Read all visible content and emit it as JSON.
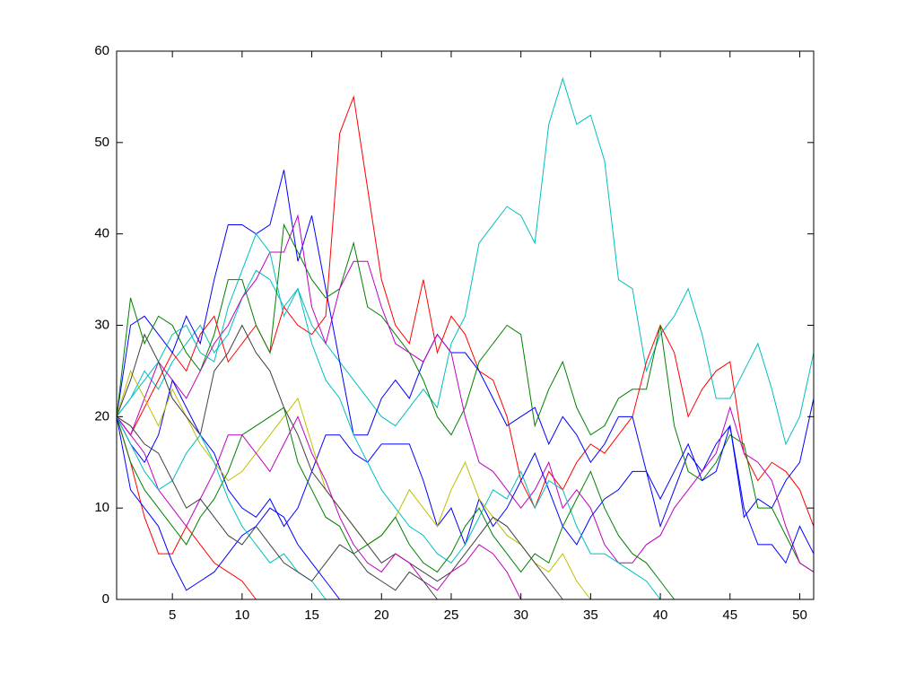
{
  "chart_data": {
    "type": "line",
    "x": [
      1,
      2,
      3,
      4,
      5,
      6,
      7,
      8,
      9,
      10,
      11,
      12,
      13,
      14,
      15,
      16,
      17,
      18,
      19,
      20,
      21,
      22,
      23,
      24,
      25,
      26,
      27,
      28,
      29,
      30,
      31,
      32,
      33,
      34,
      35,
      36,
      37,
      38,
      39,
      40,
      41,
      42,
      43,
      44,
      45,
      46,
      47,
      48,
      49,
      50,
      51
    ],
    "xlim": [
      1,
      51
    ],
    "xticks": [
      5,
      10,
      15,
      20,
      25,
      30,
      35,
      40,
      45,
      50
    ],
    "ylim": [
      0,
      60
    ],
    "yticks": [
      0,
      10,
      20,
      30,
      40,
      50,
      60
    ],
    "series": [
      {
        "color": "#00bfbf",
        "values": [
          20,
          22,
          25,
          23,
          26,
          28,
          30,
          27,
          29,
          33,
          36,
          35,
          32,
          34,
          30,
          28,
          26,
          24,
          22,
          20,
          19,
          21,
          23,
          21,
          28,
          31,
          39,
          41,
          43,
          42,
          39,
          52,
          57,
          52,
          53,
          48,
          35,
          34,
          25,
          29,
          31,
          34,
          29,
          22,
          22,
          25,
          28,
          23,
          17,
          20,
          27
        ]
      },
      {
        "color": "#ff0000",
        "values": [
          20,
          18,
          21,
          24,
          27,
          25,
          29,
          31,
          26,
          28,
          30,
          27,
          32,
          30,
          29,
          31,
          51,
          55,
          45,
          35,
          30,
          28,
          35,
          27,
          31,
          29,
          25,
          24,
          20,
          13,
          10,
          14,
          12,
          15,
          17,
          16,
          18,
          20,
          26,
          30,
          27,
          20,
          23,
          25,
          26,
          16,
          13,
          15,
          14,
          12,
          8
        ]
      },
      {
        "color": "#0000ff",
        "values": [
          20,
          30,
          31,
          29,
          27,
          31,
          28,
          35,
          41,
          41,
          40,
          41,
          47,
          37,
          42,
          34,
          26,
          18,
          18,
          22,
          24,
          22,
          26,
          29,
          27,
          27,
          25,
          22,
          19,
          20,
          21,
          17,
          20,
          18,
          15,
          17,
          20,
          20,
          14,
          8,
          12,
          16,
          14,
          17,
          19,
          9,
          11,
          10,
          13,
          15,
          22
        ]
      },
      {
        "color": "#008000",
        "values": [
          20,
          33,
          28,
          31,
          30,
          27,
          25,
          29,
          35,
          35,
          30,
          27,
          41,
          38,
          35,
          33,
          34,
          39,
          32,
          31,
          29,
          27,
          24,
          20,
          18,
          21,
          26,
          28,
          30,
          29,
          19,
          23,
          26,
          21,
          18,
          19,
          22,
          23,
          23,
          30,
          19,
          14,
          13,
          15,
          18,
          17,
          10,
          10,
          7,
          4,
          3
        ]
      },
      {
        "color": "#bf00bf",
        "values": [
          20,
          18,
          22,
          26,
          24,
          22,
          25,
          28,
          30,
          33,
          35,
          38,
          38,
          42,
          32,
          28,
          34,
          37,
          37,
          32,
          28,
          27,
          26,
          29,
          27,
          20,
          15,
          14,
          12,
          10,
          12,
          15,
          10,
          12,
          10,
          6,
          4,
          4,
          6,
          7,
          10,
          12,
          14,
          16,
          21,
          16,
          15,
          13,
          8,
          4,
          3
        ]
      },
      {
        "color": "#0000ff",
        "values": [
          20,
          17,
          15,
          18,
          24,
          21,
          18,
          16,
          12,
          10,
          9,
          11,
          8,
          10,
          14,
          18,
          18,
          16,
          15,
          17,
          17,
          17,
          13,
          8,
          10,
          6,
          11,
          8,
          10,
          13,
          16,
          12,
          8,
          6,
          9,
          11,
          12,
          14,
          14,
          11,
          14,
          17,
          13,
          14,
          19,
          10,
          6,
          6,
          4,
          8,
          5
        ]
      },
      {
        "color": "#00bfbf",
        "values": [
          20,
          22,
          24,
          26,
          29,
          30,
          27,
          26,
          32,
          36,
          40,
          38,
          31,
          34,
          28,
          24,
          22,
          18,
          15,
          12,
          10,
          8,
          7,
          5,
          4,
          6,
          9,
          12,
          11,
          14,
          10,
          13,
          12,
          8,
          5,
          5,
          4,
          3,
          2,
          0,
          null,
          null,
          null,
          null,
          null,
          null,
          null,
          null,
          null,
          null,
          null
        ]
      },
      {
        "color": "#bfbf00",
        "values": [
          20,
          25,
          22,
          19,
          23,
          20,
          17,
          15,
          13,
          14,
          16,
          18,
          20,
          22,
          17,
          12,
          10,
          8,
          6,
          7,
          9,
          12,
          10,
          8,
          12,
          15,
          11,
          9,
          7,
          6,
          4,
          3,
          5,
          2,
          0,
          null,
          null,
          null,
          null,
          null,
          null,
          null,
          null,
          null,
          null,
          null,
          null,
          null,
          null,
          null,
          null
        ]
      },
      {
        "color": "#404040",
        "values": [
          20,
          24,
          29,
          26,
          22,
          20,
          18,
          25,
          27,
          30,
          27,
          25,
          21,
          18,
          14,
          12,
          10,
          8,
          6,
          4,
          5,
          4,
          3,
          2,
          3,
          5,
          7,
          9,
          8,
          6,
          4,
          2,
          0,
          null,
          null,
          null,
          null,
          null,
          null,
          null,
          null,
          null,
          null,
          null,
          null,
          null,
          null,
          null,
          null,
          null,
          null
        ]
      },
      {
        "color": "#ff0000",
        "values": [
          20,
          15,
          9,
          5,
          5,
          8,
          6,
          4,
          3,
          2,
          0,
          null,
          null,
          null,
          null,
          null,
          null,
          null,
          null,
          null,
          null,
          null,
          null,
          null,
          null,
          null,
          null,
          null,
          null,
          null,
          null,
          null,
          null,
          null,
          null,
          null,
          null,
          null,
          null,
          null,
          null,
          null,
          null,
          null,
          null,
          null,
          null,
          null,
          null,
          null,
          null
        ]
      },
      {
        "color": "#008000",
        "values": [
          20,
          15,
          12,
          10,
          8,
          6,
          9,
          11,
          14,
          18,
          19,
          20,
          21,
          15,
          12,
          9,
          8,
          5,
          6,
          7,
          9,
          6,
          4,
          3,
          5,
          8,
          10,
          7,
          5,
          3,
          5,
          4,
          8,
          11,
          14,
          10,
          7,
          5,
          4,
          2,
          0,
          null,
          null,
          null,
          null,
          null,
          null,
          null,
          null,
          null,
          null
        ]
      },
      {
        "color": "#0000ff",
        "values": [
          20,
          12,
          10,
          8,
          4,
          1,
          2,
          3,
          5,
          7,
          8,
          10,
          9,
          6,
          4,
          2,
          0,
          null,
          null,
          null,
          null,
          null,
          null,
          null,
          null,
          null,
          null,
          null,
          null,
          null,
          null,
          null,
          null,
          null,
          null,
          null,
          null,
          null,
          null,
          null,
          null,
          null,
          null,
          null,
          null,
          null,
          null,
          null,
          null,
          null,
          null
        ]
      },
      {
        "color": "#bf00bf",
        "values": [
          20,
          18,
          16,
          12,
          10,
          8,
          11,
          14,
          18,
          18,
          16,
          14,
          17,
          20,
          16,
          13,
          9,
          6,
          4,
          3,
          5,
          4,
          2,
          1,
          3,
          4,
          6,
          5,
          3,
          0,
          null,
          null,
          null,
          null,
          null,
          null,
          null,
          null,
          null,
          null,
          null,
          null,
          null,
          null,
          null,
          null,
          null,
          null,
          null,
          null,
          null
        ]
      },
      {
        "color": "#00bfbf",
        "values": [
          20,
          17,
          14,
          12,
          13,
          16,
          18,
          15,
          11,
          8,
          6,
          4,
          5,
          3,
          2,
          0,
          null,
          null,
          null,
          null,
          null,
          null,
          null,
          null,
          null,
          null,
          null,
          null,
          null,
          null,
          null,
          null,
          null,
          null,
          null,
          null,
          null,
          null,
          null,
          null,
          null,
          null,
          null,
          null,
          null,
          null,
          null,
          null,
          null,
          null,
          null
        ]
      },
      {
        "color": "#404040",
        "values": [
          20,
          19,
          17,
          16,
          13,
          10,
          11,
          9,
          7,
          6,
          8,
          6,
          4,
          3,
          2,
          4,
          6,
          5,
          3,
          2,
          1,
          3,
          2,
          0,
          null,
          null,
          null,
          null,
          null,
          null,
          null,
          null,
          null,
          null,
          null,
          null,
          null,
          null,
          null,
          null,
          null,
          null,
          null,
          null,
          null,
          null,
          null,
          null,
          null,
          null,
          null
        ]
      }
    ]
  }
}
